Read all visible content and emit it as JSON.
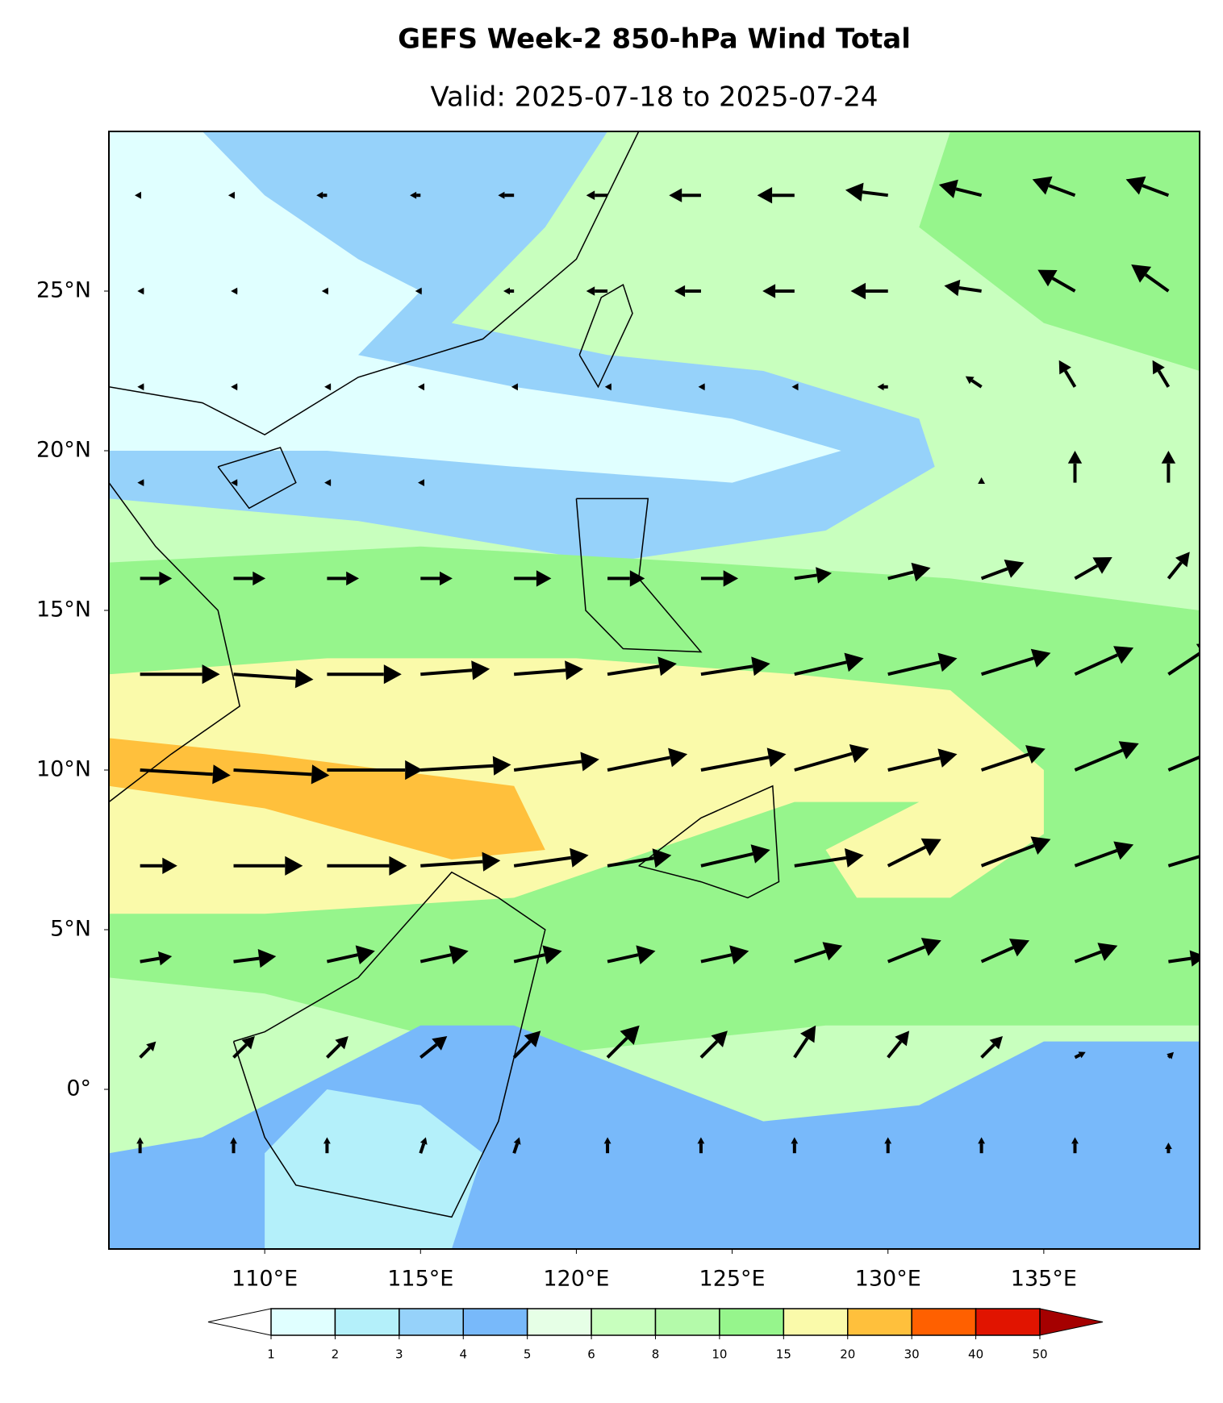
{
  "chart_data": {
    "type": "quiver",
    "title": "GEFS Week-2 850-hPa Wind Total",
    "subtitle": "Valid: 2025-07-18 to 2025-07-24",
    "xlim": [
      105,
      140
    ],
    "ylim": [
      -5,
      30
    ],
    "xticks": [
      {
        "value": 110,
        "label": "110°E"
      },
      {
        "value": 115,
        "label": "115°E"
      },
      {
        "value": 120,
        "label": "120°E"
      },
      {
        "value": 125,
        "label": "125°E"
      },
      {
        "value": 130,
        "label": "130°E"
      },
      {
        "value": 135,
        "label": "135°E"
      }
    ],
    "yticks": [
      {
        "value": 0,
        "label": "0°"
      },
      {
        "value": 5,
        "label": "5°N"
      },
      {
        "value": 10,
        "label": "10°N"
      },
      {
        "value": 15,
        "label": "15°N"
      },
      {
        "value": 20,
        "label": "20°N"
      },
      {
        "value": 25,
        "label": "25°N"
      }
    ],
    "wind": {
      "lons": [
        106,
        109,
        112,
        115,
        118,
        121,
        124,
        127,
        130,
        133,
        136,
        139
      ],
      "lats": [
        28,
        25,
        22,
        19,
        16,
        13,
        10,
        7,
        4,
        1,
        -2
      ],
      "u": [
        [
          -1,
          -1,
          -2,
          -2,
          -3,
          -4,
          -6,
          -7,
          -8,
          -8,
          -8,
          -8
        ],
        [
          -0.5,
          -0.5,
          -1,
          -1,
          -2,
          -4,
          -5,
          -6,
          -7,
          -7,
          -7,
          -7
        ],
        [
          -0.5,
          -0.5,
          -0.5,
          -0.5,
          -0.5,
          -0.5,
          -0.5,
          -0.5,
          -2,
          -3,
          -3,
          -3
        ],
        [
          -0.5,
          -0.5,
          -0.5,
          -0.5,
          0,
          0,
          0,
          0,
          0,
          0,
          0,
          0
        ],
        [
          6,
          6,
          6,
          6,
          7,
          7,
          7,
          7,
          8,
          8,
          7,
          4
        ],
        [
          15,
          15,
          14,
          13,
          13,
          13,
          13,
          13,
          13,
          13,
          11,
          9
        ],
        [
          17,
          18,
          18,
          17,
          16,
          15,
          16,
          14,
          13,
          12,
          12,
          12
        ],
        [
          7,
          13,
          15,
          15,
          14,
          12,
          13,
          13,
          10,
          13,
          11,
          10
        ],
        [
          6,
          8,
          9,
          9,
          9,
          9,
          9,
          9,
          10,
          9,
          8,
          7
        ],
        [
          3,
          4,
          4,
          5,
          5,
          6,
          5,
          4,
          4,
          4,
          2,
          1
        ],
        [
          0,
          0,
          0,
          1,
          1,
          0,
          0,
          0,
          0,
          0,
          0,
          0
        ]
      ],
      "v": [
        [
          0,
          0,
          0,
          0,
          0,
          0,
          0,
          0,
          1,
          2,
          3,
          3
        ],
        [
          0,
          0,
          0,
          0,
          0,
          0,
          0,
          0,
          0,
          1,
          4,
          5
        ],
        [
          0,
          0,
          0,
          0,
          0,
          0,
          0,
          0,
          0,
          2,
          5,
          5
        ],
        [
          0,
          0,
          0,
          0,
          0,
          0,
          0,
          0,
          0,
          1,
          6,
          6
        ],
        [
          0,
          0,
          0,
          0,
          0,
          0,
          0,
          1,
          2,
          3,
          4,
          5
        ],
        [
          0,
          -1,
          0,
          1,
          1,
          2,
          2,
          3,
          3,
          4,
          5,
          6
        ],
        [
          -1,
          -1,
          0,
          1,
          2,
          3,
          3,
          4,
          3,
          4,
          5,
          5
        ],
        [
          0,
          0,
          0,
          1,
          2,
          2,
          3,
          2,
          5,
          5,
          4,
          3
        ],
        [
          1,
          1,
          2,
          2,
          2,
          2,
          2,
          3,
          4,
          4,
          3,
          1
        ],
        [
          3,
          4,
          4,
          4,
          5,
          6,
          5,
          6,
          5,
          4,
          1,
          1
        ],
        [
          3,
          3,
          3,
          3,
          3,
          3,
          3,
          3,
          3,
          3,
          3,
          2
        ]
      ]
    },
    "colorbar": {
      "levels": [
        1,
        2,
        3,
        4,
        5,
        6,
        8,
        10,
        15,
        20,
        30,
        40,
        50
      ],
      "colors": [
        "#e0ffff",
        "#b4f0fa",
        "#96d2fa",
        "#78b9fa",
        "#e6ffe6",
        "#c8ffbe",
        "#b4faaa",
        "#96f58c",
        "#fafaaa",
        "#ffc03c",
        "#ff6000",
        "#e11400"
      ],
      "under_color": "#ffffff",
      "over_color": "#a50000"
    }
  }
}
